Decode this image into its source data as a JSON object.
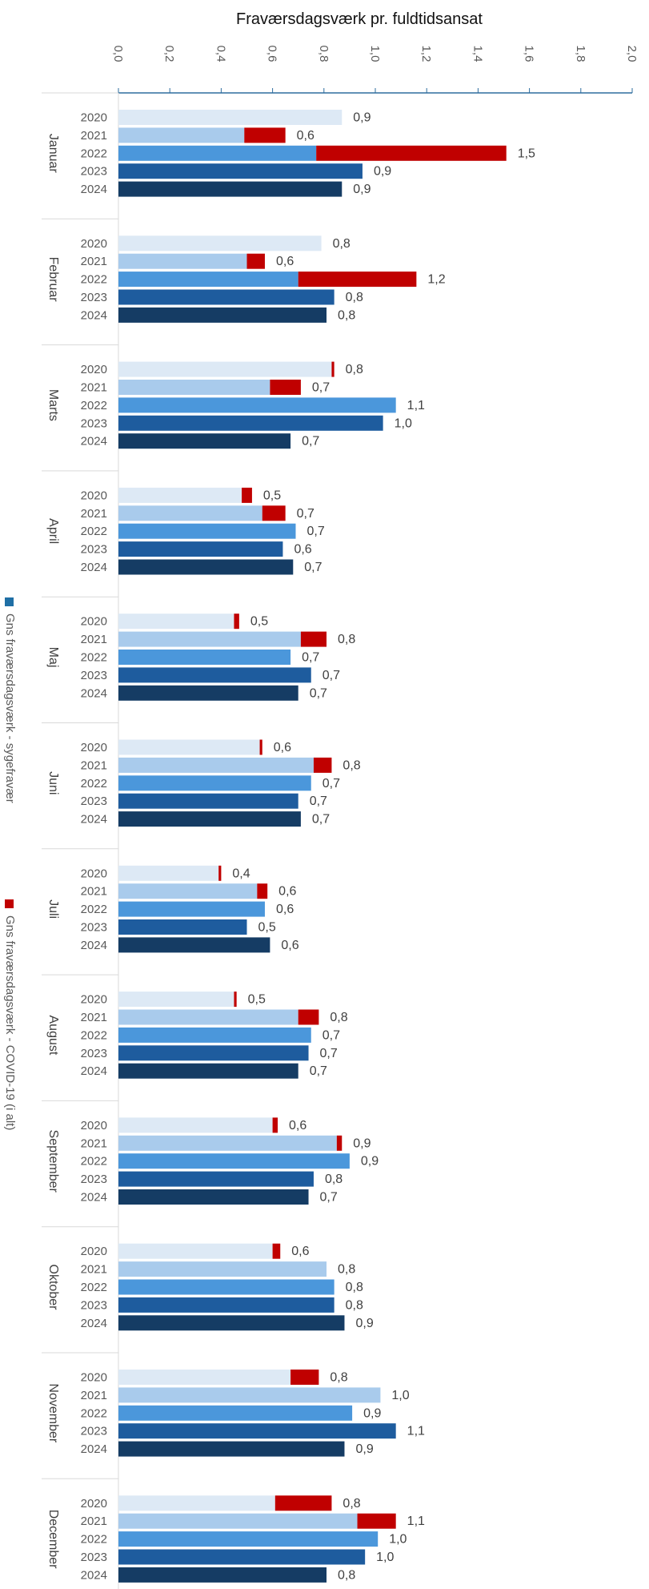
{
  "chart_data": {
    "type": "bar",
    "orientation": "horizontal",
    "stacked": true,
    "title": "Fraværsdagsværk pr. fuldtidsansat",
    "x_axis": {
      "position": "top",
      "range": [
        0,
        2.0
      ],
      "ticks": [
        "0,0",
        "0,2",
        "0,4",
        "0,6",
        "0,8",
        "1,0",
        "1,2",
        "1,4",
        "1,6",
        "1,8",
        "2,0"
      ]
    },
    "grid": false,
    "legend": {
      "placement": "left",
      "orientation": "vertical",
      "entries": [
        {
          "name": "Gns fraværsdagsværk - sygefravær",
          "color": "#1f6fa5"
        },
        {
          "name": "Gns fraværsdagsværk - COVID-19 (i alt)",
          "color": "#c00000"
        }
      ]
    },
    "year_colors": {
      "2020": "#dde9f5",
      "2021": "#a9cbec",
      "2022": "#4b97db",
      "2023": "#1e5c9e",
      "2024": "#153c64"
    },
    "covid_color": "#c00000",
    "groups": [
      {
        "month": "Januar",
        "bars": [
          {
            "year": "2020",
            "sick": 0.87,
            "covid": 0.0,
            "label": "0,9"
          },
          {
            "year": "2021",
            "sick": 0.49,
            "covid": 0.16,
            "label": "0,6"
          },
          {
            "year": "2022",
            "sick": 0.77,
            "covid": 0.74,
            "label": "1,5"
          },
          {
            "year": "2023",
            "sick": 0.95,
            "covid": 0.0,
            "label": "0,9"
          },
          {
            "year": "2024",
            "sick": 0.87,
            "covid": 0.0,
            "label": "0,9"
          }
        ]
      },
      {
        "month": "Februar",
        "bars": [
          {
            "year": "2020",
            "sick": 0.79,
            "covid": 0.0,
            "label": "0,8"
          },
          {
            "year": "2021",
            "sick": 0.5,
            "covid": 0.07,
            "label": "0,6"
          },
          {
            "year": "2022",
            "sick": 0.7,
            "covid": 0.46,
            "label": "1,2"
          },
          {
            "year": "2023",
            "sick": 0.84,
            "covid": 0.0,
            "label": "0,8"
          },
          {
            "year": "2024",
            "sick": 0.81,
            "covid": 0.0,
            "label": "0,8"
          }
        ]
      },
      {
        "month": "Marts",
        "bars": [
          {
            "year": "2020",
            "sick": 0.83,
            "covid": 0.01,
            "label": "0,8"
          },
          {
            "year": "2021",
            "sick": 0.59,
            "covid": 0.12,
            "label": "0,7"
          },
          {
            "year": "2022",
            "sick": 1.08,
            "covid": 0.0,
            "label": "1,1"
          },
          {
            "year": "2023",
            "sick": 1.03,
            "covid": 0.0,
            "label": "1,0"
          },
          {
            "year": "2024",
            "sick": 0.67,
            "covid": 0.0,
            "label": "0,7"
          }
        ]
      },
      {
        "month": "April",
        "bars": [
          {
            "year": "2020",
            "sick": 0.48,
            "covid": 0.04,
            "label": "0,5"
          },
          {
            "year": "2021",
            "sick": 0.56,
            "covid": 0.09,
            "label": "0,7"
          },
          {
            "year": "2022",
            "sick": 0.69,
            "covid": 0.0,
            "label": "0,7"
          },
          {
            "year": "2023",
            "sick": 0.64,
            "covid": 0.0,
            "label": "0,6"
          },
          {
            "year": "2024",
            "sick": 0.68,
            "covid": 0.0,
            "label": "0,7"
          }
        ]
      },
      {
        "month": "Maj",
        "bars": [
          {
            "year": "2020",
            "sick": 0.45,
            "covid": 0.02,
            "label": "0,5"
          },
          {
            "year": "2021",
            "sick": 0.71,
            "covid": 0.1,
            "label": "0,8"
          },
          {
            "year": "2022",
            "sick": 0.67,
            "covid": 0.0,
            "label": "0,7"
          },
          {
            "year": "2023",
            "sick": 0.75,
            "covid": 0.0,
            "label": "0,7"
          },
          {
            "year": "2024",
            "sick": 0.7,
            "covid": 0.0,
            "label": "0,7"
          }
        ]
      },
      {
        "month": "Juni",
        "bars": [
          {
            "year": "2020",
            "sick": 0.55,
            "covid": 0.01,
            "label": "0,6"
          },
          {
            "year": "2021",
            "sick": 0.76,
            "covid": 0.07,
            "label": "0,8"
          },
          {
            "year": "2022",
            "sick": 0.75,
            "covid": 0.0,
            "label": "0,7"
          },
          {
            "year": "2023",
            "sick": 0.7,
            "covid": 0.0,
            "label": "0,7"
          },
          {
            "year": "2024",
            "sick": 0.71,
            "covid": 0.0,
            "label": "0,7"
          }
        ]
      },
      {
        "month": "Juli",
        "bars": [
          {
            "year": "2020",
            "sick": 0.39,
            "covid": 0.01,
            "label": "0,4"
          },
          {
            "year": "2021",
            "sick": 0.54,
            "covid": 0.04,
            "label": "0,6"
          },
          {
            "year": "2022",
            "sick": 0.57,
            "covid": 0.0,
            "label": "0,6"
          },
          {
            "year": "2023",
            "sick": 0.5,
            "covid": 0.0,
            "label": "0,5"
          },
          {
            "year": "2024",
            "sick": 0.59,
            "covid": 0.0,
            "label": "0,6"
          }
        ]
      },
      {
        "month": "August",
        "bars": [
          {
            "year": "2020",
            "sick": 0.45,
            "covid": 0.01,
            "label": "0,5"
          },
          {
            "year": "2021",
            "sick": 0.7,
            "covid": 0.08,
            "label": "0,8"
          },
          {
            "year": "2022",
            "sick": 0.75,
            "covid": 0.0,
            "label": "0,7"
          },
          {
            "year": "2023",
            "sick": 0.74,
            "covid": 0.0,
            "label": "0,7"
          },
          {
            "year": "2024",
            "sick": 0.7,
            "covid": 0.0,
            "label": "0,7"
          }
        ]
      },
      {
        "month": "September",
        "bars": [
          {
            "year": "2020",
            "sick": 0.6,
            "covid": 0.02,
            "label": "0,6"
          },
          {
            "year": "2021",
            "sick": 0.85,
            "covid": 0.02,
            "label": "0,9"
          },
          {
            "year": "2022",
            "sick": 0.9,
            "covid": 0.0,
            "label": "0,9"
          },
          {
            "year": "2023",
            "sick": 0.76,
            "covid": 0.0,
            "label": "0,8"
          },
          {
            "year": "2024",
            "sick": 0.74,
            "covid": 0.0,
            "label": "0,7"
          }
        ]
      },
      {
        "month": "Oktober",
        "bars": [
          {
            "year": "2020",
            "sick": 0.6,
            "covid": 0.03,
            "label": "0,6"
          },
          {
            "year": "2021",
            "sick": 0.81,
            "covid": 0.0,
            "label": "0,8"
          },
          {
            "year": "2022",
            "sick": 0.84,
            "covid": 0.0,
            "label": "0,8"
          },
          {
            "year": "2023",
            "sick": 0.84,
            "covid": 0.0,
            "label": "0,8"
          },
          {
            "year": "2024",
            "sick": 0.88,
            "covid": 0.0,
            "label": "0,9"
          }
        ]
      },
      {
        "month": "November",
        "bars": [
          {
            "year": "2020",
            "sick": 0.67,
            "covid": 0.11,
            "label": "0,8"
          },
          {
            "year": "2021",
            "sick": 1.02,
            "covid": 0.0,
            "label": "1,0"
          },
          {
            "year": "2022",
            "sick": 0.91,
            "covid": 0.0,
            "label": "0,9"
          },
          {
            "year": "2023",
            "sick": 1.08,
            "covid": 0.0,
            "label": "1,1"
          },
          {
            "year": "2024",
            "sick": 0.88,
            "covid": 0.0,
            "label": "0,9"
          }
        ]
      },
      {
        "month": "December",
        "bars": [
          {
            "year": "2020",
            "sick": 0.61,
            "covid": 0.22,
            "label": "0,8"
          },
          {
            "year": "2021",
            "sick": 0.93,
            "covid": 0.15,
            "label": "1,1"
          },
          {
            "year": "2022",
            "sick": 1.01,
            "covid": 0.0,
            "label": "1,0"
          },
          {
            "year": "2023",
            "sick": 0.96,
            "covid": 0.0,
            "label": "1,0"
          },
          {
            "year": "2024",
            "sick": 0.81,
            "covid": 0.0,
            "label": "0,8"
          }
        ]
      }
    ]
  }
}
